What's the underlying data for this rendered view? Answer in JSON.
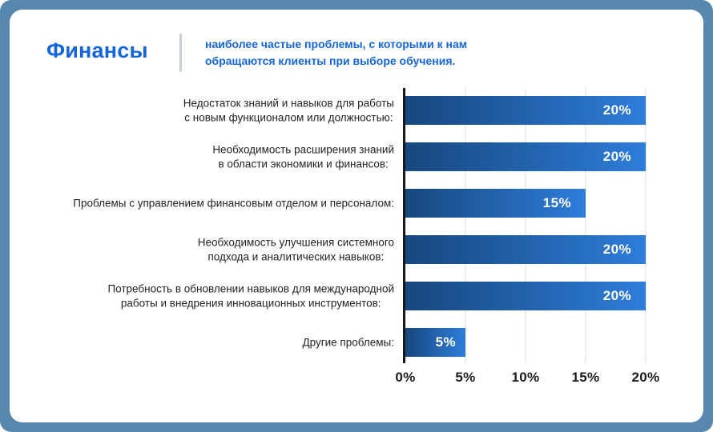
{
  "frame": {
    "background_color": "#5787AE",
    "card_color": "#FFFFFF"
  },
  "header": {
    "title": "Финансы",
    "subtitle": "наиболее частые проблемы, с которыми к нам\nобращаются клиенты при выборе обучения.",
    "accent_color": "#1565D8",
    "divider_color": "#C9CED6"
  },
  "chart_data": {
    "type": "bar",
    "orientation": "horizontal",
    "title": "",
    "xlabel": "",
    "ylabel": "",
    "xlim": [
      0,
      20
    ],
    "xticks": [
      "0%",
      "5%",
      "10%",
      "15%",
      "20%"
    ],
    "grid": "vertical",
    "legend": "none",
    "bar_color_start": "#17477E",
    "bar_color_end": "#2E7DDA",
    "value_label_color": "#FFFFFF",
    "categories": [
      "Недостаток знаний и навыков для работы с новым функционалом или должностью:",
      "Необходимость расширения знаний в области экономики и финансов:",
      "Проблемы с управлением финансовым отделом и персоналом:",
      "Необходимость улучшения системного подхода и аналитических навыков:",
      "Потребность в обновлении навыков для международной работы и внедрения инновационных инструментов:",
      "Другие проблемы:"
    ],
    "values": [
      20,
      20,
      15,
      20,
      20,
      5
    ],
    "bars": [
      {
        "label_lines": [
          "Недостаток знаний и навыков для работы",
          "с новым функционалом или должностью:"
        ],
        "value": 20,
        "value_label": "20%"
      },
      {
        "label_lines": [
          "Необходимость расширения знаний",
          "в области экономики и финансов:"
        ],
        "value": 20,
        "value_label": "20%"
      },
      {
        "label_lines": [
          "Проблемы с управлением финансовым отделом и персоналом:"
        ],
        "value": 15,
        "value_label": "15%"
      },
      {
        "label_lines": [
          "Необходимость улучшения системного",
          "подхода и аналитических навыков:"
        ],
        "value": 20,
        "value_label": "20%"
      },
      {
        "label_lines": [
          "Потребность в обновлении навыков для международной",
          "работы и внедрения инновационных инструментов:"
        ],
        "value": 20,
        "value_label": "20%"
      },
      {
        "label_lines": [
          "Другие проблемы:"
        ],
        "value": 5,
        "value_label": "5%"
      }
    ]
  }
}
